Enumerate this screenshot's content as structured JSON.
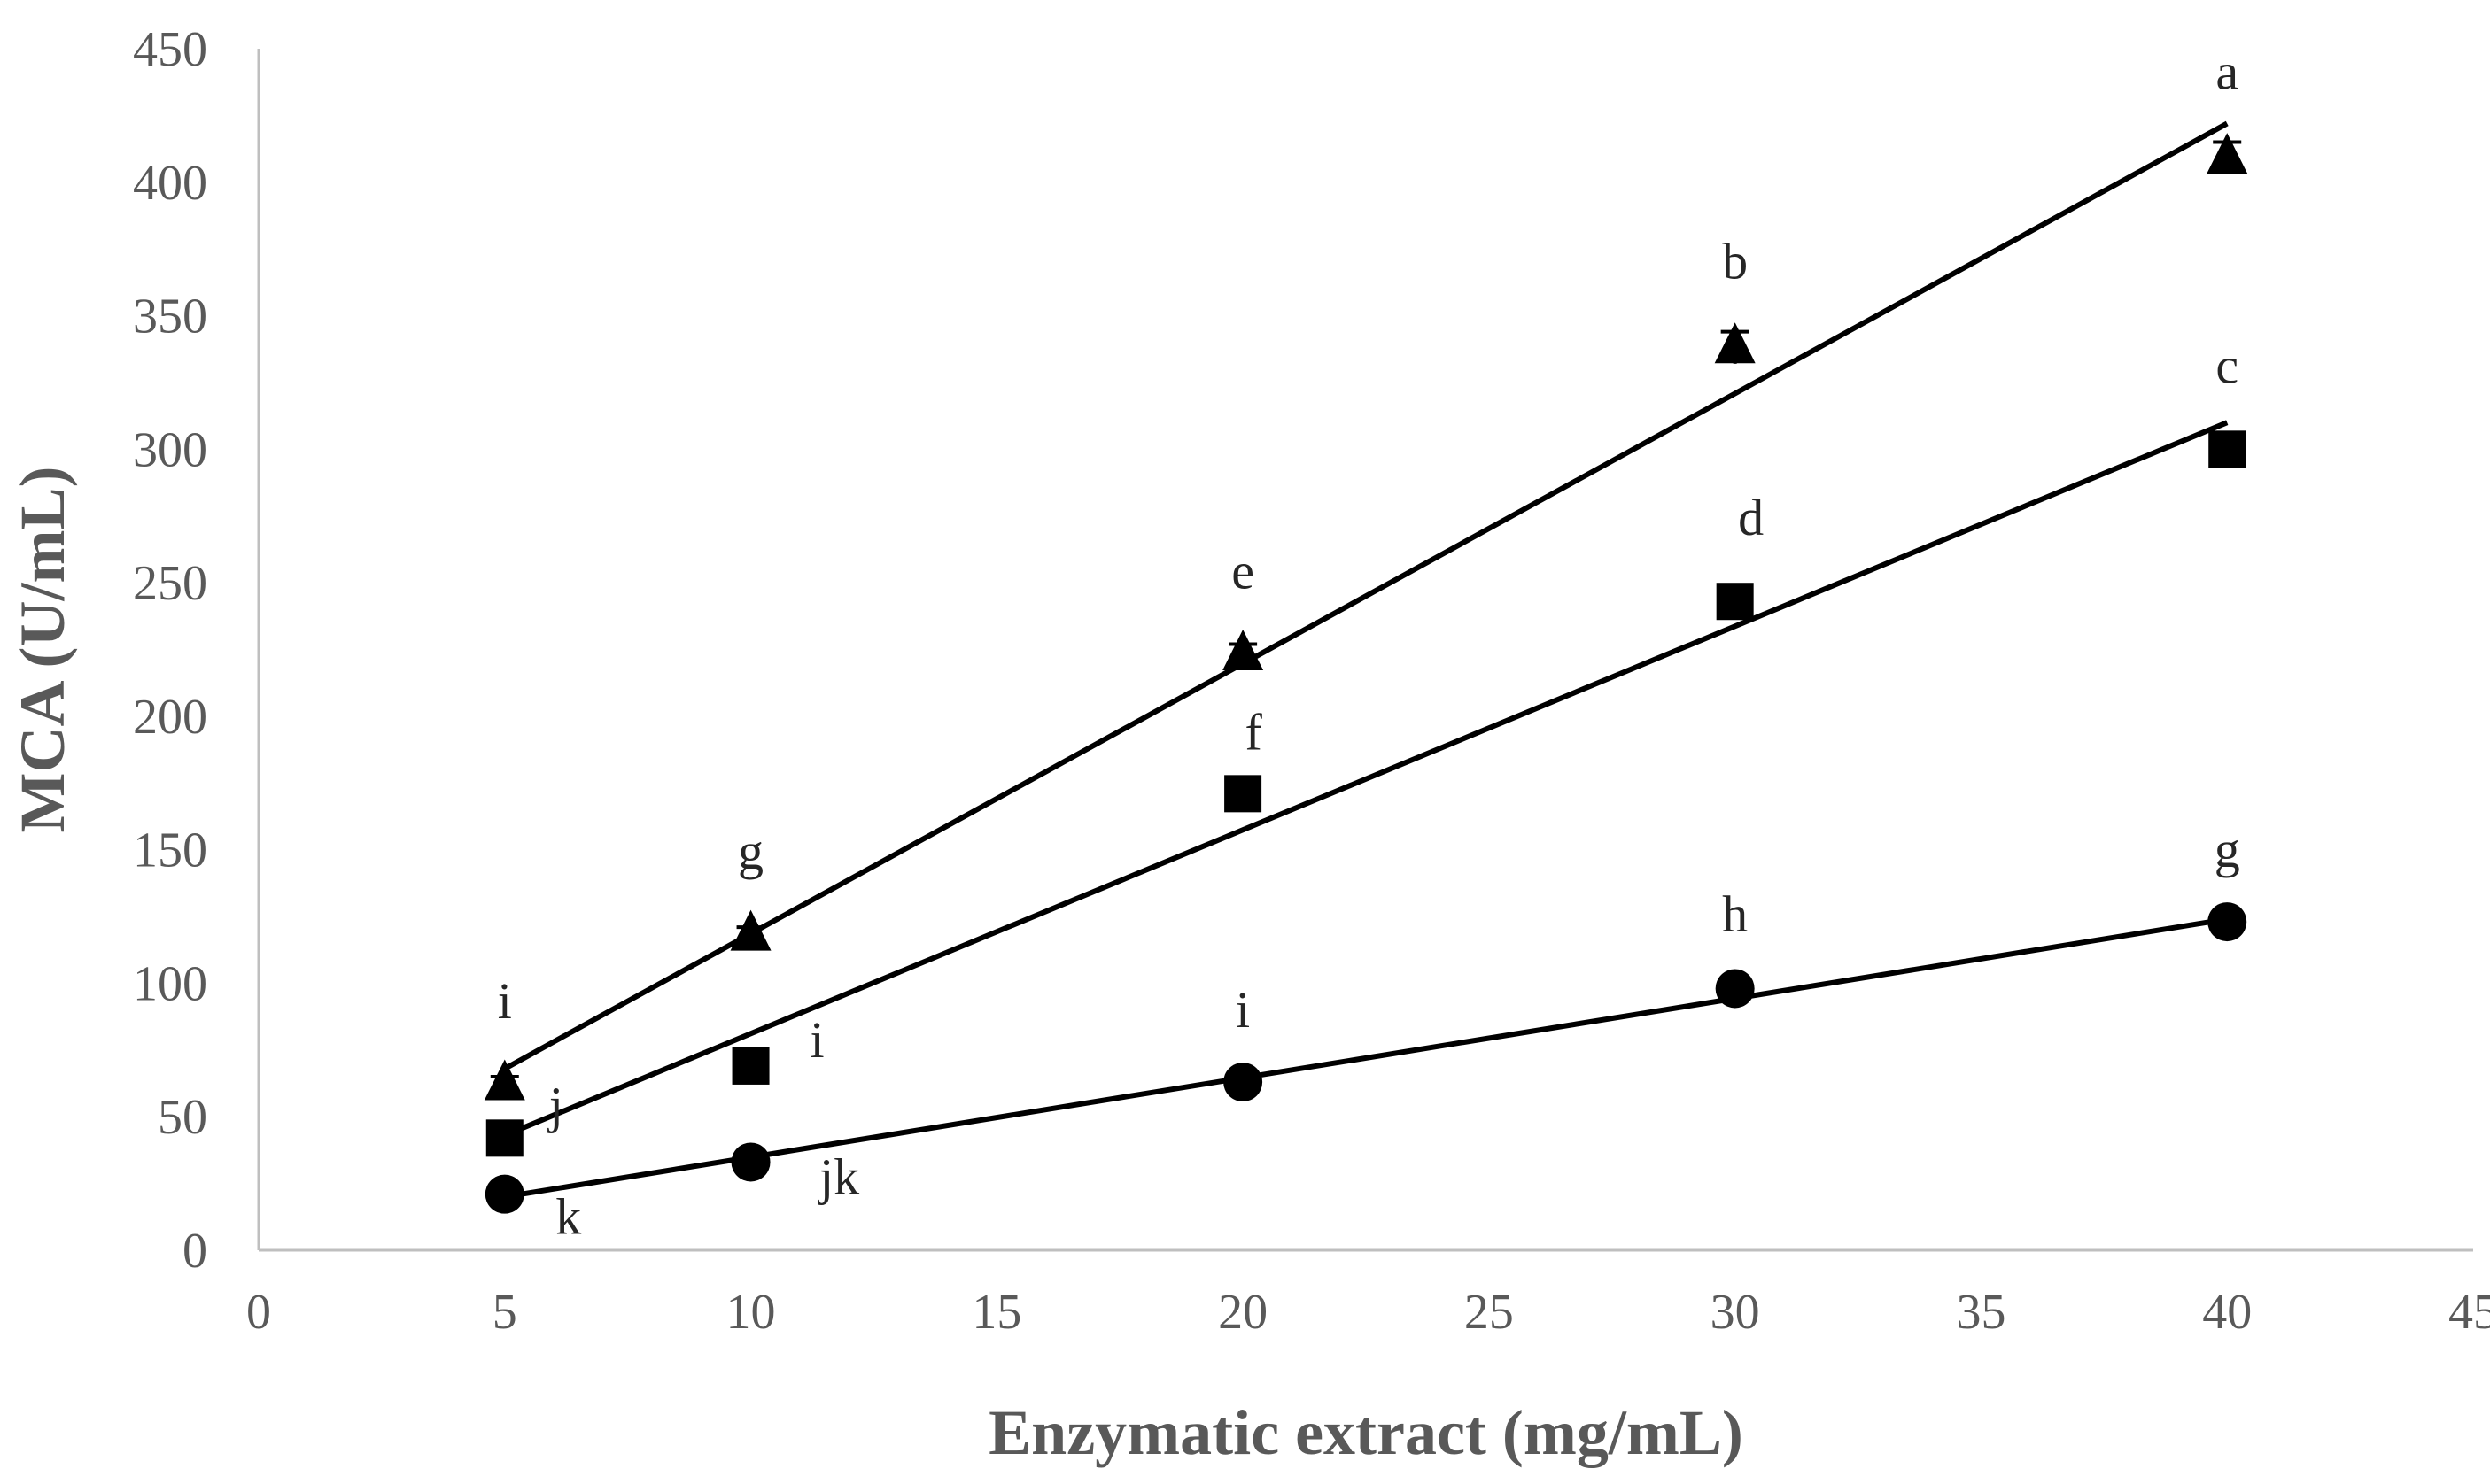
{
  "chart_data": {
    "type": "scatter",
    "title": "",
    "xlabel": "Enzymatic extract (mg/mL)",
    "ylabel": "MCA (U/mL)",
    "xlim": [
      0,
      45
    ],
    "ylim": [
      0,
      450
    ],
    "x_ticks": [
      "0",
      "5",
      "10",
      "15",
      "20",
      "25",
      "30",
      "35",
      "40",
      "45"
    ],
    "y_ticks": [
      "0",
      "50",
      "100",
      "150",
      "200",
      "250",
      "300",
      "350",
      "400",
      "450"
    ],
    "grid": false,
    "legend": "none",
    "series": [
      {
        "marker": "triangle",
        "color": "#000000",
        "x": [
          5,
          10,
          20,
          30,
          40
        ],
        "y": [
          62,
          118,
          223,
          338,
          409
        ],
        "error": [
          3,
          3,
          4,
          6,
          6
        ],
        "labels": [
          "i",
          "g",
          "e",
          "b",
          "a"
        ],
        "trendline": {
          "x": [
            5,
            40
          ],
          "y": [
            68,
            422
          ]
        }
      },
      {
        "marker": "square",
        "color": "#000000",
        "x": [
          5,
          10,
          20,
          30,
          40
        ],
        "y": [
          42,
          69,
          171,
          243,
          300
        ],
        "error": [
          2,
          2,
          3,
          3,
          3
        ],
        "labels": [
          "j",
          "i",
          "f",
          "d",
          "c"
        ],
        "trendline": {
          "x": [
            5,
            40
          ],
          "y": [
            43,
            310
          ]
        }
      },
      {
        "marker": "circle",
        "color": "#000000",
        "x": [
          5,
          10,
          20,
          30,
          40
        ],
        "y": [
          21,
          33,
          63,
          98,
          123
        ],
        "error": [
          1,
          1,
          2,
          2,
          2
        ],
        "labels": [
          "k",
          "jk",
          "i",
          "h",
          "g"
        ],
        "trendline": {
          "x": [
            5,
            40
          ],
          "y": [
            20,
            124
          ]
        }
      }
    ]
  }
}
